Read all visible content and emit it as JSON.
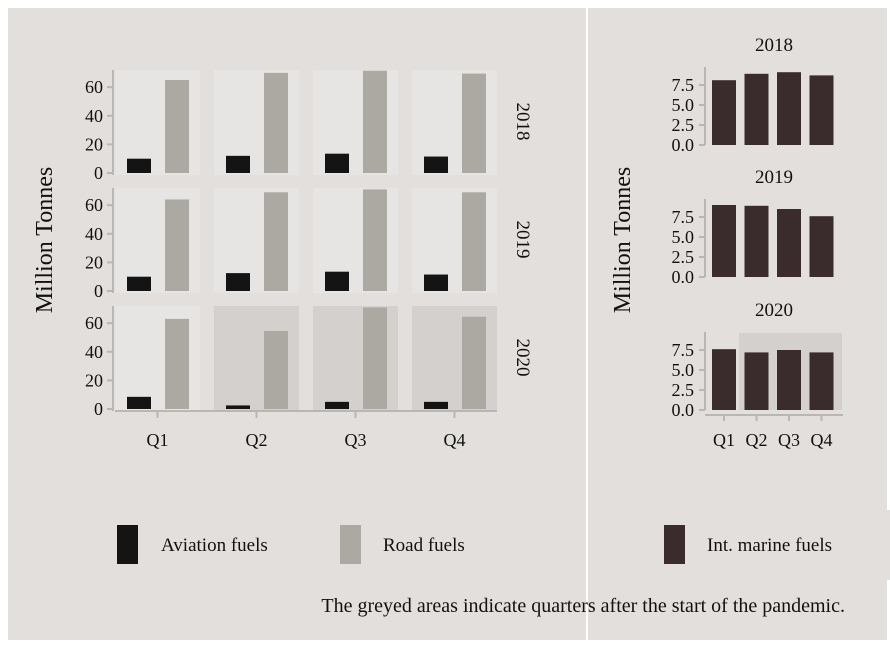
{
  "colors": {
    "background": "#e3dfdc",
    "panel": "#e7e5e3",
    "panel_pandemic": "#d3d0ce",
    "aviation": "#141414",
    "road": "#aca9a3",
    "marine": "#3a2c2c",
    "axis": "#b9b6b3"
  },
  "caption": "The greyed areas indicate quarters after the start of the pandemic.",
  "legend": {
    "aviation": "Aviation fuels",
    "road": "Road fuels",
    "marine": "Int. marine fuels"
  },
  "chart_data": [
    {
      "type": "bar",
      "ylabel": "Million Tonnes",
      "quarters": [
        "Q1",
        "Q2",
        "Q3",
        "Q4"
      ],
      "years": [
        "2018",
        "2019",
        "2020"
      ],
      "ylim": [
        0,
        72
      ],
      "yticks": [
        0,
        20,
        40,
        60
      ],
      "pandemic_quarters": {
        "2020": [
          "Q2",
          "Q3",
          "Q4"
        ]
      },
      "series": [
        {
          "name": "Aviation fuels",
          "values": {
            "2018": [
              10,
              12,
              13.5,
              11.5
            ],
            "2019": [
              10,
              12.5,
              13.5,
              11.5
            ],
            "2020": [
              8.5,
              2.5,
              5,
              5
            ]
          }
        },
        {
          "name": "Road fuels",
          "values": {
            "2018": [
              65,
              70,
              71.5,
              69.5
            ],
            "2019": [
              64,
              69,
              71,
              69
            ],
            "2020": [
              63,
              54.5,
              71,
              64.5
            ]
          }
        }
      ]
    },
    {
      "type": "bar",
      "ylabel": "Million Tonnes",
      "quarters": [
        "Q1",
        "Q2",
        "Q3",
        "Q4"
      ],
      "years": [
        "2018",
        "2019",
        "2020"
      ],
      "ylim": [
        0,
        9.5
      ],
      "yticks": [
        "0.0",
        "2.5",
        "5.0",
        "7.5"
      ],
      "pandemic_quarters": {
        "2020": [
          "Q2",
          "Q3",
          "Q4"
        ]
      },
      "series": [
        {
          "name": "Int. marine fuels",
          "values": {
            "2018": [
              8.1,
              8.9,
              9.1,
              8.7
            ],
            "2019": [
              9.0,
              8.9,
              8.5,
              7.6
            ],
            "2020": [
              7.6,
              7.2,
              7.5,
              7.2
            ]
          }
        }
      ]
    }
  ]
}
